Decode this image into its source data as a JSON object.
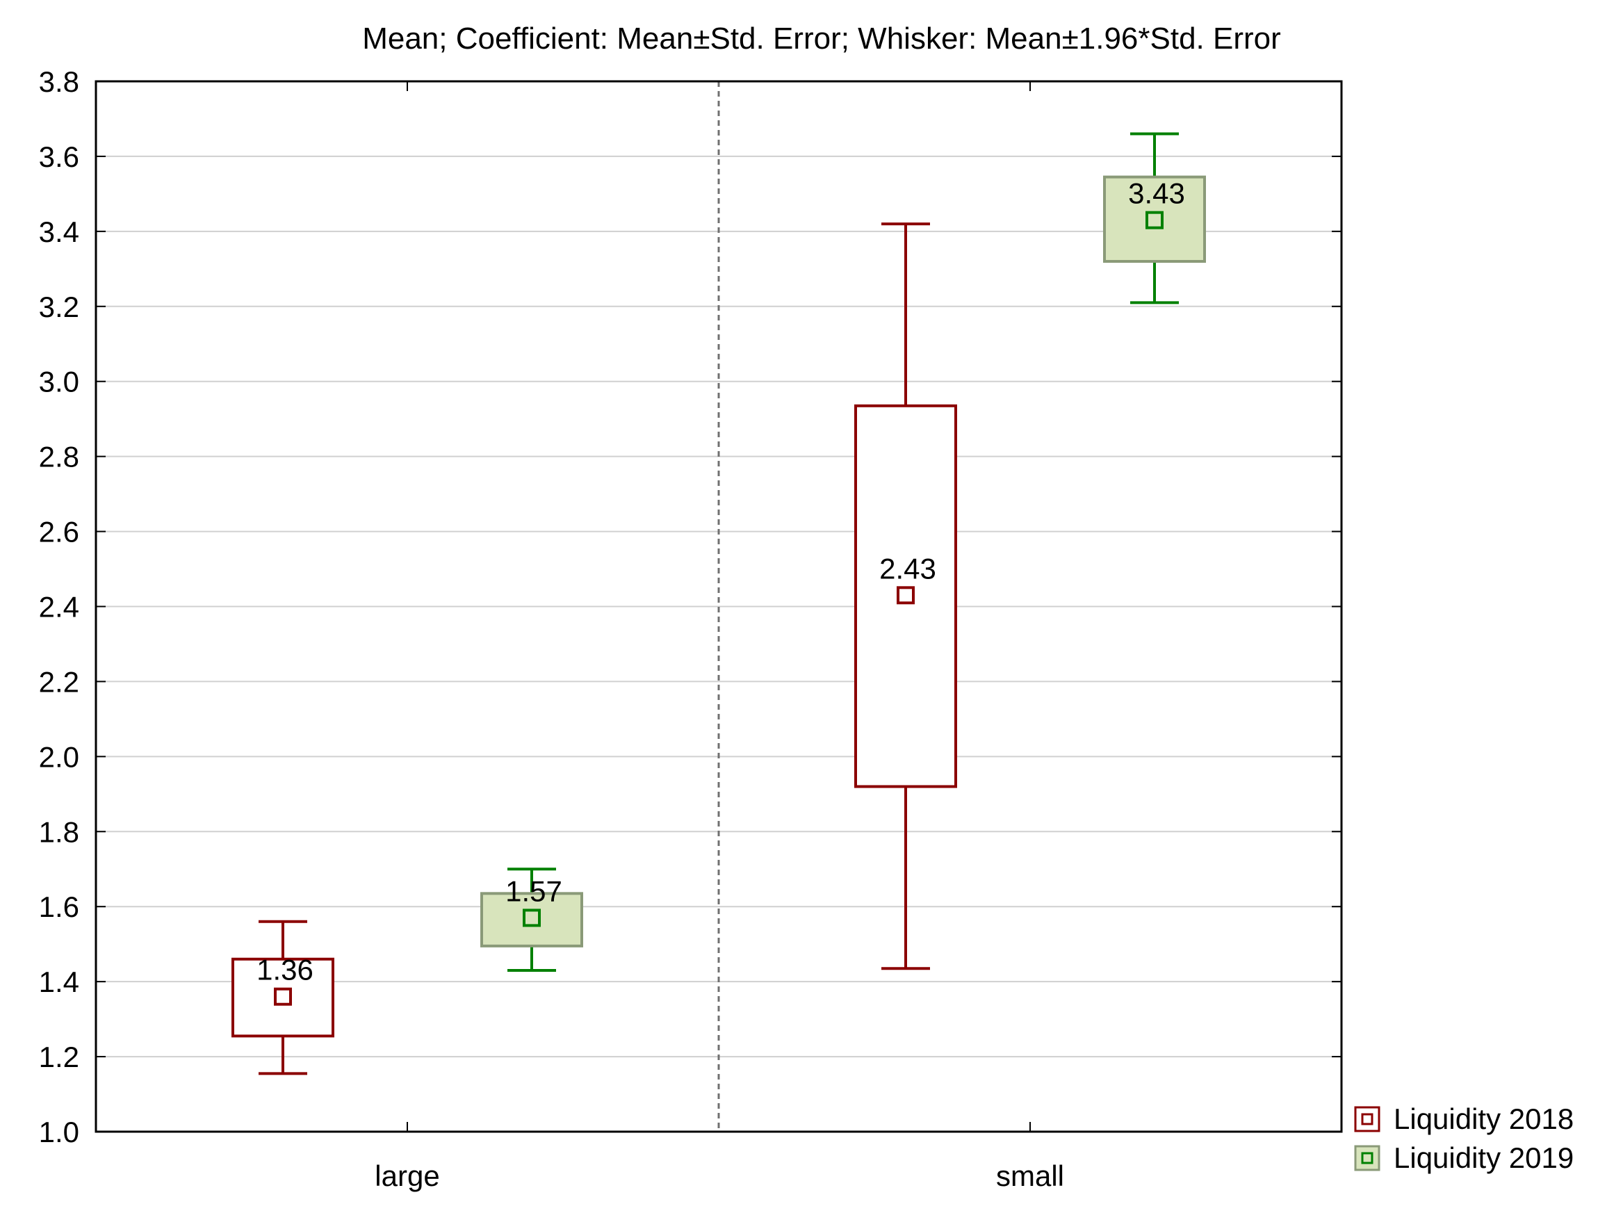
{
  "chart_data": {
    "type": "boxplot",
    "title": "Mean; Coefficient: Mean±Std. Error; Whisker: Mean±1.96*Std. Error",
    "xlabel": "",
    "ylabel": "",
    "categories": [
      "large",
      "small"
    ],
    "ylim": [
      1.0,
      3.8
    ],
    "yticks": [
      "1.0",
      "1.2",
      "1.4",
      "1.6",
      "1.8",
      "2.0",
      "2.2",
      "2.4",
      "2.6",
      "2.8",
      "3.0",
      "3.2",
      "3.4",
      "3.6",
      "3.8"
    ],
    "grid": true,
    "legend_position": "bottom-right",
    "series": [
      {
        "name": "Liquidity 2018",
        "color": "#8b0000",
        "box_fill": "#ffffff",
        "points": [
          {
            "category": "large",
            "mean": 1.36,
            "box_low": 1.255,
            "box_high": 1.46,
            "whisker_low": 1.155,
            "whisker_high": 1.56,
            "label": "1.36"
          },
          {
            "category": "small",
            "mean": 2.43,
            "box_low": 1.92,
            "box_high": 2.935,
            "whisker_low": 1.435,
            "whisker_high": 3.42,
            "label": "2.43"
          }
        ]
      },
      {
        "name": "Liquidity 2019",
        "color": "#008000",
        "box_fill": "#d8e4bc",
        "box_stroke": "#8a9a78",
        "points": [
          {
            "category": "large",
            "mean": 1.57,
            "box_low": 1.495,
            "box_high": 1.635,
            "whisker_low": 1.43,
            "whisker_high": 1.7,
            "label": "1.57"
          },
          {
            "category": "small",
            "mean": 3.43,
            "box_low": 3.32,
            "box_high": 3.545,
            "whisker_low": 3.21,
            "whisker_high": 3.66,
            "label": "3.43"
          }
        ]
      }
    ]
  }
}
